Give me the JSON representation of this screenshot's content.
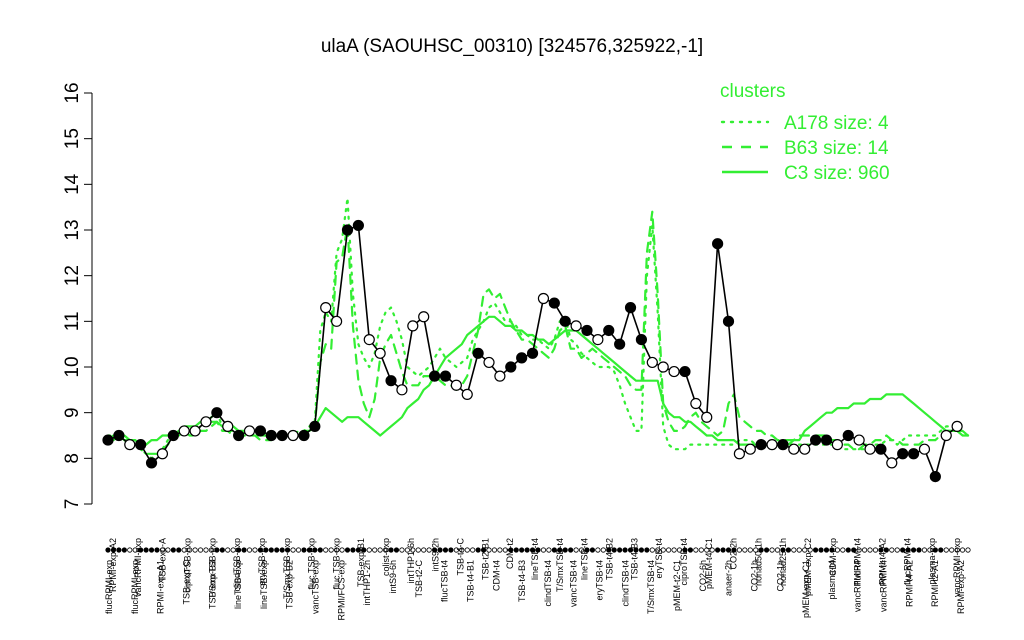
{
  "chart_data": {
    "type": "line",
    "title": "ulaA (SAOUHSC_00310) [324576,325922,-1]",
    "xlabel": "",
    "ylabel": "",
    "ylim": [
      7,
      16
    ],
    "y_ticks": [
      7,
      8,
      9,
      10,
      11,
      12,
      13,
      14,
      15,
      16
    ],
    "grid": false,
    "legend": {
      "title": "clusters",
      "position": "top-right",
      "color": "#33ee33",
      "entries": [
        {
          "label": "A178 size: 4",
          "style": "dotted"
        },
        {
          "label": "B63 size: 14",
          "style": "dashed"
        },
        {
          "label": "C3 size: 960",
          "style": "solid"
        }
      ]
    },
    "x_labels_upper": [
      "RPMI-exp-A2",
      "vancRPMI-exp",
      "TSB-exp-A",
      "ciproTSB-exp",
      "T/SmxTSB-exp",
      "clindTSB-exp",
      "eryTSB-exp",
      "T/SmxTSB-exp",
      "fluc.TSB-exp",
      "fluc.TSB-exp",
      "TSB-exp-B1",
      "colist-exp",
      "intTHP1-6h",
      "intS9-2h",
      "TSB-t4-C",
      "TSB-t2-B1",
      "CDM-t2",
      "lineTSB-t4",
      "T/SmxTSB-t4",
      "lineTSB-t4",
      "TSB-t4-B2",
      "TSB-t4-B3",
      "eryTSB-t4",
      "ciproTSB-t4",
      "pMEM-t4-C1",
      "CO2-2h",
      "nonad50-1h",
      "nonad25-1h",
      "pMEM-exp-C2",
      "CDM-exp",
      "flucRPMI-t4",
      "RPMI-t4-A2",
      "flucRPMI-t4",
      "plasma-exp",
      "vancRPMI-exp"
    ],
    "x_labels_lower": [
      "flucRPMI-exp",
      "flucRPMI-exp",
      "RPMI-exp-A1",
      "TSB-exp-C",
      "TSB-exp-B3",
      "lineTSB-exp",
      "lineTSB-exp",
      "TSB-exp-B2",
      "vancTSB-exp",
      "RPMI/FCS-exp",
      "intTHP1-2h",
      "intS9-6h",
      "TSB-t2-C",
      "flucTSB-t4",
      "TSB-t4-B1",
      "CDM-t4",
      "TSB-t4-B3",
      "clindTSB-t4",
      "vancTSB-t4",
      "eryTSB-t4",
      "clindTSB-t4",
      "T/SmxTSB-t4",
      "pMEM-t2-C1",
      "CO2-6h",
      "anaer-2h",
      "CO2-1h",
      "CO2-1h",
      "pMEM-exp-C1",
      "plasma-t4",
      "vancRPMI-t4",
      "vancRPMI-t4",
      "RPMI-t4-A2",
      "RPMI-t2-A1",
      "RPMI-exp-A2"
    ],
    "series": [
      {
        "name": "A178 size: 4",
        "style": "dotted",
        "x": [
          1,
          2,
          3,
          4,
          5,
          6,
          7,
          8,
          9,
          10,
          11,
          12,
          13,
          14,
          15,
          16,
          17,
          18,
          19,
          20,
          21,
          22,
          23,
          24,
          25,
          26,
          27,
          28,
          29,
          30,
          31,
          32,
          33,
          34,
          35,
          36,
          37,
          38,
          39,
          40,
          41,
          42,
          43,
          44,
          45,
          46,
          47,
          48,
          49,
          50,
          51,
          52,
          53,
          54,
          55,
          56,
          57,
          58,
          59,
          60,
          61,
          62,
          63,
          64,
          65,
          66,
          67,
          68,
          69,
          70,
          71,
          72,
          73,
          74,
          75,
          76,
          77,
          78,
          79,
          80,
          81,
          82,
          83,
          84,
          85,
          86,
          87,
          88,
          89,
          90,
          91,
          92,
          93,
          94,
          95,
          96,
          97,
          98,
          99,
          100,
          101,
          102,
          103,
          104,
          105,
          106,
          107,
          108,
          109,
          110,
          111,
          112,
          113,
          114,
          115,
          116,
          117,
          118,
          119,
          120,
          121,
          122,
          123,
          124,
          125,
          126,
          127,
          128,
          129,
          130,
          131,
          132,
          133,
          134,
          135,
          136,
          137,
          138,
          139,
          140,
          141,
          142,
          143,
          144,
          145,
          146,
          147,
          148,
          149,
          150,
          151,
          152,
          153,
          154,
          155,
          156,
          157,
          158,
          159
        ],
        "y": [
          8.5,
          8.5,
          8.6,
          8.4,
          8.4,
          8.3,
          8.2,
          8.1,
          8.0,
          8.1,
          8.2,
          8.4,
          8.5,
          8.6,
          8.6,
          8.5,
          8.6,
          8.7,
          8.8,
          8.9,
          9.0,
          8.7,
          8.6,
          8.6,
          8.5,
          8.6,
          8.5,
          8.5,
          8.5,
          8.5,
          8.5,
          8.5,
          8.5,
          8.5,
          8.5,
          8.6,
          8.6,
          8.7,
          8.8,
          10.8,
          11.2,
          11.0,
          12.5,
          12.8,
          13.7,
          11.6,
          10.5,
          10.2,
          10.0,
          10.3,
          10.9,
          11.2,
          11.3,
          11.0,
          10.6,
          10.0,
          9.9,
          9.8,
          9.9,
          10.0,
          10.2,
          10.4,
          10.2,
          10.1,
          10.0,
          10.1,
          10.2,
          10.6,
          10.8,
          11.0,
          11.3,
          11.4,
          11.2,
          11.0,
          11.0,
          10.9,
          10.7,
          10.7,
          10.6,
          10.6,
          10.5,
          10.4,
          10.6,
          11.0,
          11.1,
          10.6,
          10.5,
          10.3,
          10.2,
          10.1,
          10.0,
          10.0,
          10.0,
          9.9,
          9.6,
          9.2,
          8.9,
          8.6,
          8.6,
          12.0,
          13.1,
          11.2,
          8.7,
          8.3,
          8.2,
          8.2,
          8.2,
          8.3,
          8.3,
          8.3,
          8.3,
          8.3,
          8.3,
          8.3,
          8.3,
          8.3,
          8.4,
          8.4,
          8.4,
          8.3,
          8.3,
          8.3,
          8.3,
          8.3,
          8.3,
          8.3,
          8.3,
          8.3,
          8.3,
          8.3,
          8.3,
          8.3,
          8.3,
          8.3,
          8.3,
          8.2,
          8.2,
          8.2,
          8.2,
          8.2,
          8.3,
          8.3,
          8.3,
          8.4,
          8.4,
          8.3,
          8.4,
          8.5,
          8.5,
          8.5,
          8.5,
          8.5,
          8.5,
          8.6,
          8.7,
          8.7,
          8.6,
          8.6,
          8.5
        ]
      },
      {
        "name": "B63 size: 14",
        "style": "dashed",
        "x": [
          1,
          2,
          3,
          4,
          5,
          6,
          7,
          8,
          9,
          10,
          11,
          12,
          13,
          14,
          15,
          16,
          17,
          18,
          19,
          20,
          21,
          22,
          23,
          24,
          25,
          26,
          27,
          28,
          29,
          30,
          31,
          32,
          33,
          34,
          35,
          36,
          37,
          38,
          39,
          40,
          41,
          42,
          43,
          44,
          45,
          46,
          47,
          48,
          49,
          50,
          51,
          52,
          53,
          54,
          55,
          56,
          57,
          58,
          59,
          60,
          61,
          62,
          63,
          64,
          65,
          66,
          67,
          68,
          69,
          70,
          71,
          72,
          73,
          74,
          75,
          76,
          77,
          78,
          79,
          80,
          81,
          82,
          83,
          84,
          85,
          86,
          87,
          88,
          89,
          90,
          91,
          92,
          93,
          94,
          95,
          96,
          97,
          98,
          99,
          100,
          101,
          102,
          103,
          104,
          105,
          106,
          107,
          108,
          109,
          110,
          111,
          112,
          113,
          114,
          115,
          116,
          117,
          118,
          119,
          120,
          121,
          122,
          123,
          124,
          125,
          126,
          127,
          128,
          129,
          130,
          131,
          132,
          133,
          134,
          135,
          136,
          137,
          138,
          139,
          140,
          141,
          142,
          143,
          144,
          145,
          146,
          147,
          148,
          149,
          150,
          151,
          152,
          153,
          154,
          155,
          156,
          157,
          158,
          159
        ],
        "y": [
          8.4,
          8.5,
          8.5,
          8.4,
          8.3,
          8.3,
          8.2,
          8.1,
          8.1,
          8.1,
          8.2,
          8.3,
          8.5,
          8.5,
          8.6,
          8.5,
          8.5,
          8.6,
          8.6,
          8.7,
          8.8,
          8.6,
          8.6,
          8.5,
          8.5,
          8.5,
          8.5,
          8.5,
          8.4,
          8.4,
          8.4,
          8.5,
          8.5,
          8.5,
          8.5,
          8.5,
          8.5,
          8.6,
          8.7,
          10.1,
          10.5,
          10.4,
          12.3,
          12.4,
          13.1,
          10.9,
          9.7,
          9.2,
          8.9,
          9.3,
          10.2,
          10.5,
          10.7,
          10.3,
          9.9,
          9.6,
          9.6,
          9.6,
          9.8,
          9.8,
          9.8,
          9.7,
          9.6,
          9.6,
          9.5,
          9.6,
          9.8,
          10.3,
          10.8,
          11.6,
          11.7,
          11.5,
          11.6,
          11.3,
          11.0,
          10.8,
          10.6,
          10.6,
          10.5,
          10.4,
          10.3,
          10.2,
          10.4,
          10.8,
          10.9,
          10.4,
          10.4,
          10.2,
          10.3,
          10.4,
          10.3,
          10.2,
          10.1,
          10.0,
          9.9,
          9.8,
          9.6,
          9.5,
          9.5,
          12.5,
          13.4,
          11.6,
          9.2,
          8.8,
          8.6,
          8.6,
          8.7,
          8.9,
          9.0,
          8.8,
          8.7,
          8.6,
          8.5,
          8.6,
          9.2,
          9.4,
          8.9,
          8.8,
          8.7,
          8.6,
          8.6,
          8.5,
          8.5,
          8.4,
          8.4,
          8.4,
          8.4,
          8.5,
          8.5,
          8.5,
          8.5,
          8.5,
          8.5,
          8.4,
          8.4,
          8.3,
          8.3,
          8.2,
          8.2,
          8.3,
          8.3,
          8.4,
          8.4,
          8.5,
          8.4,
          8.4,
          8.3,
          8.3,
          8.3,
          8.3,
          8.4,
          8.4,
          8.4,
          8.5,
          8.6,
          8.6,
          8.6,
          8.6,
          8.5
        ]
      },
      {
        "name": "C3 size: 960",
        "style": "solid",
        "x": [
          1,
          2,
          3,
          4,
          5,
          6,
          7,
          8,
          9,
          10,
          11,
          12,
          13,
          14,
          15,
          16,
          17,
          18,
          19,
          20,
          21,
          22,
          23,
          24,
          25,
          26,
          27,
          28,
          29,
          30,
          31,
          32,
          33,
          34,
          35,
          36,
          37,
          38,
          39,
          40,
          41,
          42,
          43,
          44,
          45,
          46,
          47,
          48,
          49,
          50,
          51,
          52,
          53,
          54,
          55,
          56,
          57,
          58,
          59,
          60,
          61,
          62,
          63,
          64,
          65,
          66,
          67,
          68,
          69,
          70,
          71,
          72,
          73,
          74,
          75,
          76,
          77,
          78,
          79,
          80,
          81,
          82,
          83,
          84,
          85,
          86,
          87,
          88,
          89,
          90,
          91,
          92,
          93,
          94,
          95,
          96,
          97,
          98,
          99,
          100,
          101,
          102,
          103,
          104,
          105,
          106,
          107,
          108,
          109,
          110,
          111,
          112,
          113,
          114,
          115,
          116,
          117,
          118,
          119,
          120,
          121,
          122,
          123,
          124,
          125,
          126,
          127,
          128,
          129,
          130,
          131,
          132,
          133,
          134,
          135,
          136,
          137,
          138,
          139,
          140,
          141,
          142,
          143,
          144,
          145,
          146,
          147,
          148,
          149,
          150,
          151,
          152,
          153,
          154,
          155,
          156,
          157,
          158,
          159
        ],
        "y": [
          8.4,
          8.4,
          8.5,
          8.5,
          8.4,
          8.4,
          8.3,
          8.3,
          8.4,
          8.4,
          8.5,
          8.5,
          8.5,
          8.6,
          8.7,
          8.7,
          8.7,
          8.8,
          8.8,
          8.8,
          8.8,
          8.7,
          8.7,
          8.7,
          8.6,
          8.6,
          8.6,
          8.6,
          8.5,
          8.5,
          8.5,
          8.5,
          8.5,
          8.5,
          8.5,
          8.5,
          8.6,
          8.6,
          8.7,
          8.9,
          9.1,
          9.0,
          8.9,
          8.8,
          8.9,
          8.9,
          8.9,
          8.8,
          8.7,
          8.6,
          8.5,
          8.6,
          8.7,
          8.8,
          8.9,
          9.1,
          9.2,
          9.3,
          9.5,
          9.6,
          9.8,
          10.0,
          10.2,
          10.3,
          10.4,
          10.5,
          10.7,
          10.8,
          10.9,
          11.0,
          11.1,
          11.1,
          11.0,
          10.9,
          10.9,
          10.8,
          10.8,
          10.7,
          10.7,
          10.6,
          10.6,
          10.5,
          10.6,
          10.7,
          10.8,
          10.8,
          10.8,
          10.7,
          10.6,
          10.5,
          10.4,
          10.3,
          10.2,
          10.1,
          10.0,
          9.9,
          9.8,
          9.7,
          9.7,
          9.7,
          9.7,
          9.7,
          9.2,
          9.0,
          8.9,
          8.9,
          8.8,
          8.8,
          8.7,
          8.6,
          8.5,
          8.5,
          8.4,
          8.4,
          8.4,
          8.4,
          8.3,
          8.3,
          8.3,
          8.3,
          8.3,
          8.3,
          8.3,
          8.3,
          8.3,
          8.3,
          8.4,
          8.4,
          8.6,
          8.7,
          8.8,
          8.9,
          9.0,
          9.0,
          9.1,
          9.1,
          9.1,
          9.2,
          9.2,
          9.2,
          9.3,
          9.3,
          9.3,
          9.4,
          9.4,
          9.4,
          9.4,
          9.3,
          9.2,
          9.1,
          9.0,
          8.9,
          8.8,
          8.7,
          8.6,
          8.6,
          8.6,
          8.5,
          8.5
        ]
      }
    ],
    "points": {
      "x": [
        1,
        3,
        5,
        7,
        9,
        11,
        13,
        15,
        17,
        19,
        21,
        23,
        25,
        27,
        29,
        31,
        33,
        35,
        37,
        39,
        41,
        43,
        45,
        47,
        49,
        51,
        53,
        55,
        57,
        59,
        61,
        63,
        65,
        67,
        69,
        71,
        73,
        75,
        77,
        79,
        81,
        83,
        85,
        87,
        89,
        91,
        93,
        95,
        97,
        99,
        101,
        103,
        105,
        107,
        109,
        111,
        113,
        115,
        117,
        119,
        121,
        123,
        125,
        127,
        129,
        131,
        133,
        135,
        137,
        139,
        141,
        143,
        145,
        147,
        149,
        151,
        153,
        155,
        157
      ],
      "y": [
        8.4,
        8.5,
        8.3,
        8.3,
        7.9,
        8.1,
        8.5,
        8.6,
        8.6,
        8.8,
        9.0,
        8.7,
        8.5,
        8.6,
        8.6,
        8.5,
        8.5,
        8.5,
        8.5,
        8.7,
        11.3,
        11.0,
        13.0,
        13.1,
        10.6,
        10.3,
        9.7,
        9.5,
        10.9,
        11.1,
        9.8,
        9.8,
        9.6,
        9.4,
        10.3,
        10.1,
        9.8,
        10.0,
        10.2,
        10.3,
        11.5,
        11.4,
        11.0,
        10.9,
        10.8,
        10.6,
        10.8,
        10.5,
        11.3,
        10.6,
        10.1,
        10.0,
        9.9,
        9.9,
        9.2,
        8.9,
        12.7,
        11.0,
        8.1,
        8.2,
        8.3,
        8.3,
        8.3,
        8.2,
        8.2,
        8.4,
        8.4,
        8.3,
        8.5,
        8.4,
        8.2,
        8.2,
        7.9,
        8.1,
        8.1,
        8.2,
        7.6,
        8.5,
        8.7
      ],
      "filled": [
        true,
        true,
        false,
        true,
        true,
        false,
        true,
        false,
        false,
        false,
        true,
        false,
        true,
        false,
        true,
        true,
        true,
        false,
        true,
        true,
        false,
        false,
        true,
        true,
        false,
        false,
        true,
        false,
        false,
        false,
        true,
        true,
        false,
        false,
        true,
        false,
        false,
        true,
        true,
        true,
        false,
        true,
        true,
        false,
        true,
        false,
        true,
        true,
        true,
        true,
        false,
        false,
        false,
        true,
        false,
        false,
        true,
        true,
        false,
        false,
        true,
        false,
        true,
        false,
        false,
        true,
        true,
        false,
        true,
        false,
        false,
        true,
        false,
        true,
        true,
        false,
        true,
        false,
        false
      ]
    },
    "x_count": 159
  }
}
